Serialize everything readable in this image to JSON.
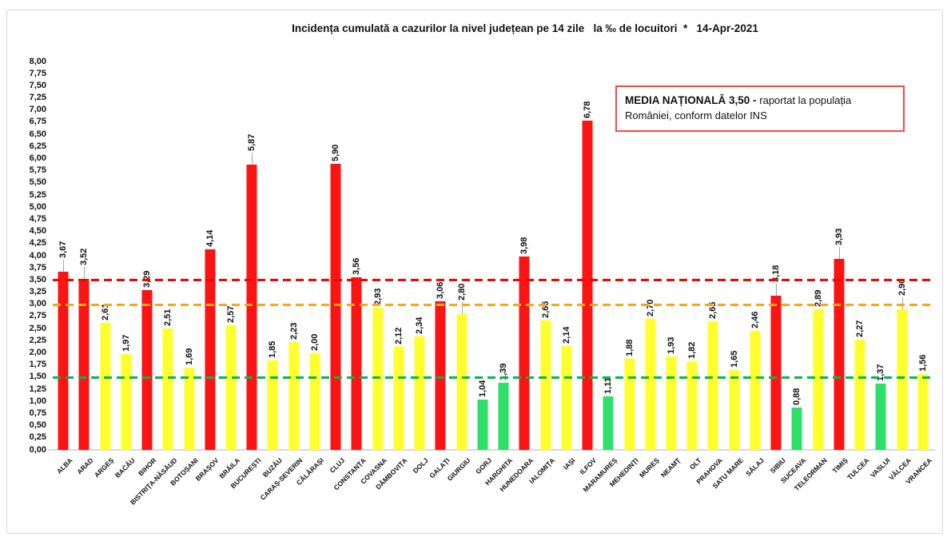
{
  "title": "Incidența cumulată a cazurilor la nivel județean pe 14 zile   la ‰ de locuitori  *   14-Apr-2021",
  "legend": {
    "bold_text": "MEDIA NAȚIONALĂ 3,50 - ",
    "normal_text": "raportat la populația României, conform datelor INS"
  },
  "colors": {
    "red": "#fa1414",
    "yellow": "#ffff2e",
    "green": "#2ee06a",
    "dash_red": "#ff0000",
    "dash_orange": "#ffa319",
    "dash_green": "#00b956",
    "leader_line": "#a6a6a6",
    "axis_line": "#d9d9d9",
    "frame": "#d8d8d8",
    "legend_border": "#ff4444"
  },
  "y_axis": {
    "min": 0,
    "max": 8,
    "step": 0.25,
    "ticks": [
      "8,00",
      "7,75",
      "7,50",
      "7,25",
      "7,00",
      "6,75",
      "6,50",
      "6,25",
      "6,00",
      "5,75",
      "5,50",
      "5,25",
      "5,00",
      "4,75",
      "4,50",
      "4,25",
      "4,00",
      "3,75",
      "3,50",
      "3,25",
      "3,00",
      "2,75",
      "2,50",
      "2,25",
      "2,00",
      "1,75",
      "1,50",
      "1,25",
      "1,00",
      "0,75",
      "0,50",
      "0,25",
      "0,00"
    ]
  },
  "reference_lines": [
    {
      "name": "national-average-line",
      "value": 3.5,
      "color_key": "dash_red"
    },
    {
      "name": "red-threshold-line",
      "value": 3.0,
      "color_key": "dash_orange"
    },
    {
      "name": "green-threshold-line",
      "value": 1.5,
      "color_key": "dash_green"
    }
  ],
  "chart_data": {
    "type": "bar",
    "title": "Incidența cumulată a cazurilor la nivel județean pe 14 zile la ‰ de locuitori * 14-Apr-2021",
    "xlabel": "",
    "ylabel": "",
    "ylim": [
      0,
      8
    ],
    "grid": false,
    "national_average": 3.5,
    "categories": [
      "ALBA",
      "ARAD",
      "ARGEȘ",
      "BACĂU",
      "BIHOR",
      "BISTRIȚA-NĂSĂUD",
      "BOTOȘANI",
      "BRAȘOV",
      "BRĂILA",
      "BUCUREȘTI",
      "BUZĂU",
      "CARAȘ-SEVERIN",
      "CĂLĂRAȘI",
      "CLUJ",
      "CONSTANȚA",
      "COVASNA",
      "DÂMBOVIȚA",
      "DOLJ",
      "GALAȚI",
      "GIURGIU",
      "GORJ",
      "HARGHITA",
      "HUNEDOARA",
      "IALOMIȚA",
      "IAȘI",
      "ILFOV",
      "MARAMUREȘ",
      "MEHEDINȚI",
      "MUREȘ",
      "NEAMȚ",
      "OLT",
      "PRAHOVA",
      "SATU MARE",
      "SĂLAJ",
      "SIBIU",
      "SUCEAVA",
      "TELEORMAN",
      "TIMIȘ",
      "TULCEA",
      "VASLUI",
      "VÂLCEA",
      "VRANCEA"
    ],
    "values": [
      3.67,
      3.52,
      2.61,
      1.97,
      3.29,
      2.51,
      1.69,
      4.14,
      2.57,
      5.87,
      1.85,
      2.23,
      2.0,
      5.9,
      3.56,
      2.93,
      2.12,
      2.34,
      3.06,
      2.8,
      1.04,
      1.39,
      3.98,
      2.66,
      2.14,
      6.78,
      1.11,
      1.88,
      2.7,
      1.93,
      1.82,
      2.65,
      1.65,
      2.46,
      3.18,
      0.88,
      2.89,
      3.93,
      2.27,
      1.37,
      2.9,
      1.56
    ],
    "value_labels": [
      "3,67",
      "3,52",
      "2,61",
      "1,97",
      "3,29",
      "2,51",
      "1,69",
      "4,14",
      "2,57",
      "5,87",
      "1,85",
      "2,23",
      "2,00",
      "5,90",
      "3,56",
      "2,93",
      "2,12",
      "2,34",
      "3,06",
      "2,80",
      "1,04",
      "1,39",
      "3,98",
      "2,66",
      "2,14",
      "6,78",
      "1,11",
      "1,88",
      "2,70",
      "1,93",
      "1,82",
      "2,65",
      "1,65",
      "2,46",
      "3,18",
      "0,88",
      "2,89",
      "3,93",
      "2,27",
      "1,37",
      "2,90",
      "1,56"
    ],
    "bar_colors": [
      "red",
      "red",
      "yellow",
      "yellow",
      "red",
      "yellow",
      "yellow",
      "red",
      "yellow",
      "red",
      "yellow",
      "yellow",
      "yellow",
      "red",
      "red",
      "yellow",
      "yellow",
      "yellow",
      "red",
      "yellow",
      "green",
      "green",
      "red",
      "yellow",
      "yellow",
      "red",
      "green",
      "yellow",
      "yellow",
      "yellow",
      "yellow",
      "yellow",
      "yellow",
      "yellow",
      "red",
      "green",
      "yellow",
      "red",
      "yellow",
      "green",
      "yellow",
      "yellow"
    ],
    "label_leader_lines": [
      true,
      true,
      false,
      false,
      false,
      false,
      false,
      false,
      false,
      true,
      false,
      false,
      false,
      false,
      false,
      false,
      false,
      false,
      false,
      true,
      false,
      false,
      false,
      false,
      false,
      false,
      false,
      false,
      false,
      false,
      false,
      false,
      false,
      false,
      true,
      false,
      false,
      true,
      false,
      false,
      true,
      false
    ]
  }
}
